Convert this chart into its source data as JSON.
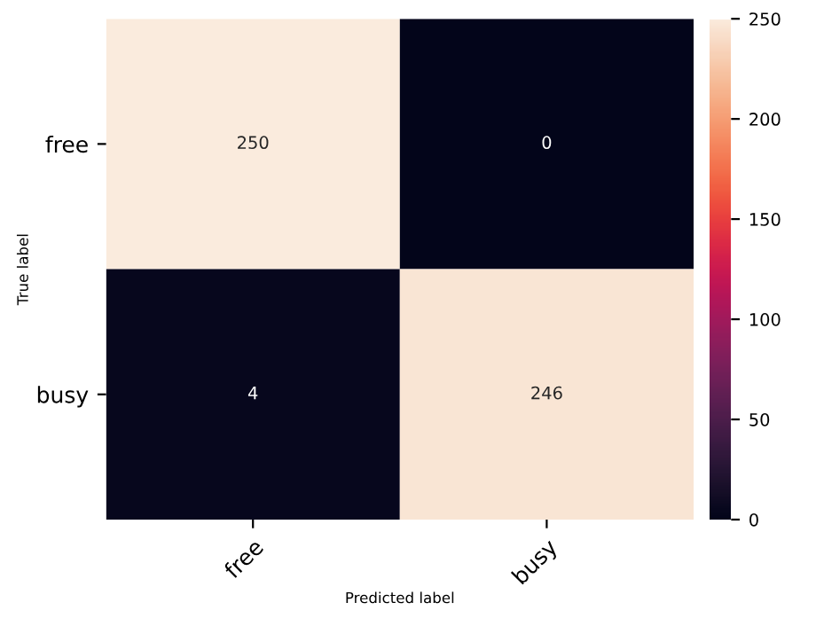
{
  "chart_data": {
    "type": "heatmap",
    "xlabel": "Predicted label",
    "ylabel": "True label",
    "categories": [
      "free",
      "busy"
    ],
    "y_categories": [
      "free",
      "busy"
    ],
    "cells": [
      [
        250,
        0
      ],
      [
        4,
        246
      ]
    ],
    "clim": [
      0,
      250
    ],
    "cticks": [
      0,
      50,
      100,
      150,
      200,
      250
    ],
    "data_labels": true
  }
}
